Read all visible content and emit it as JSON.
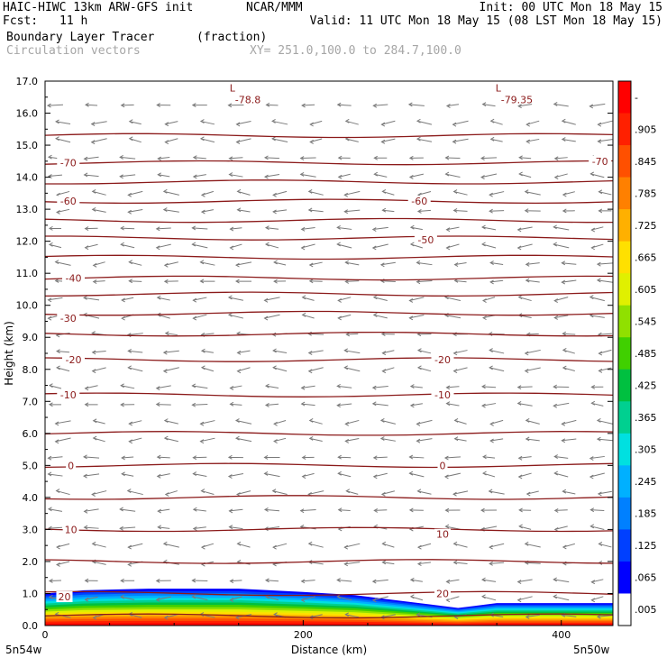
{
  "header": {
    "title_left": "HAIC-HIWC 13km ARW-GFS init",
    "org": "NCAR/MMM",
    "init": "Init: 00 UTC Mon 18 May 15",
    "fcst_label": "Fcst:",
    "fcst_value": "11 h",
    "valid": "Valid: 11 UTC Mon 18 May 15 (08 LST Mon 18 May 15)",
    "field_name": "Boundary Layer Tracer",
    "field_unit": "(fraction)",
    "vector_name": "Circulation vectors",
    "xy_range": "XY= 251.0,100.0 to 284.7,100.0"
  },
  "colors": {
    "isotherm": "#8b1a1a",
    "vector": "#7a7a7a",
    "tracer_scale": [
      "#ffffff",
      "#0000ff",
      "#0040ff",
      "#0080ff",
      "#00b0ff",
      "#00e0e0",
      "#00d090",
      "#00c040",
      "#40d000",
      "#90e000",
      "#e0f000",
      "#ffe000",
      "#ffb000",
      "#ff8000",
      "#ff5000",
      "#ff2000",
      "#ff0000"
    ]
  },
  "chart_data": {
    "type": "contour",
    "xlabel": "Distance (km)",
    "ylabel": "Height (km)",
    "xlim": [
      0,
      440
    ],
    "ylim": [
      0,
      17.0
    ],
    "x_ticks": [
      0,
      200,
      400
    ],
    "x_tick_labels": [
      "0",
      "200",
      "400"
    ],
    "y_ticks": [
      0,
      1,
      2,
      3,
      4,
      5,
      6,
      7,
      8,
      9,
      10,
      11,
      12,
      13,
      14,
      15,
      16,
      17
    ],
    "y_tick_labels": [
      "0.0",
      "1.0",
      "2.0",
      "3.0",
      "4.0",
      "5.0",
      "6.0",
      "7.0",
      "8.0",
      "9.0",
      "10.0",
      "11.0",
      "12.0",
      "13.0",
      "14.0",
      "15.0",
      "16.0",
      "17.0"
    ],
    "x_endpoint_labels": {
      "left": "5n54w",
      "right": "5n50w"
    },
    "colorbar_labels": [
      "-",
      ".905",
      ".845",
      ".785",
      ".725",
      ".665",
      ".605",
      ".545",
      ".485",
      ".425",
      ".365",
      ".305",
      ".245",
      ".185",
      ".125",
      ".065",
      ".005"
    ],
    "isotherm_levels_km": [
      0.3,
      1.0,
      2.0,
      3.0,
      4.0,
      5.0,
      6.0,
      7.2,
      8.3,
      9.1,
      9.75,
      10.35,
      10.85,
      11.5,
      12.1,
      12.65,
      13.25,
      13.85,
      14.45,
      15.3
    ],
    "contour_labels": [
      {
        "text": "-70",
        "x": 18,
        "y": 14.45
      },
      {
        "text": "-70",
        "x": 430,
        "y": 14.5
      },
      {
        "text": "-60",
        "x": 18,
        "y": 13.25
      },
      {
        "text": "-60",
        "x": 290,
        "y": 13.25
      },
      {
        "text": "-50",
        "x": 295,
        "y": 12.05
      },
      {
        "text": "-40",
        "x": 22,
        "y": 10.85
      },
      {
        "text": "-30",
        "x": 18,
        "y": 9.6
      },
      {
        "text": "-20",
        "x": 22,
        "y": 8.3
      },
      {
        "text": "-20",
        "x": 308,
        "y": 8.3
      },
      {
        "text": "-10",
        "x": 18,
        "y": 7.2
      },
      {
        "text": "-10",
        "x": 308,
        "y": 7.2
      },
      {
        "text": "0",
        "x": 20,
        "y": 5.0
      },
      {
        "text": "0",
        "x": 308,
        "y": 5.0
      },
      {
        "text": "10",
        "x": 20,
        "y": 3.0
      },
      {
        "text": "10",
        "x": 308,
        "y": 2.85
      },
      {
        "text": "20",
        "x": 15,
        "y": 0.9
      },
      {
        "text": "20",
        "x": 308,
        "y": 1.0
      }
    ],
    "low_markers": [
      {
        "letter": "L",
        "value": "-78.8",
        "x": 150,
        "y": 16.85
      },
      {
        "letter": "L",
        "value": "-79.35",
        "x": 356,
        "y": 16.85
      }
    ],
    "boundary_layer_top_km": [
      [
        0,
        1.0
      ],
      [
        30,
        1.1
      ],
      [
        80,
        1.15
      ],
      [
        150,
        1.15
      ],
      [
        200,
        1.05
      ],
      [
        240,
        0.95
      ],
      [
        270,
        0.8
      ],
      [
        300,
        0.65
      ],
      [
        320,
        0.55
      ],
      [
        330,
        0.6
      ],
      [
        350,
        0.7
      ],
      [
        440,
        0.7
      ]
    ]
  }
}
